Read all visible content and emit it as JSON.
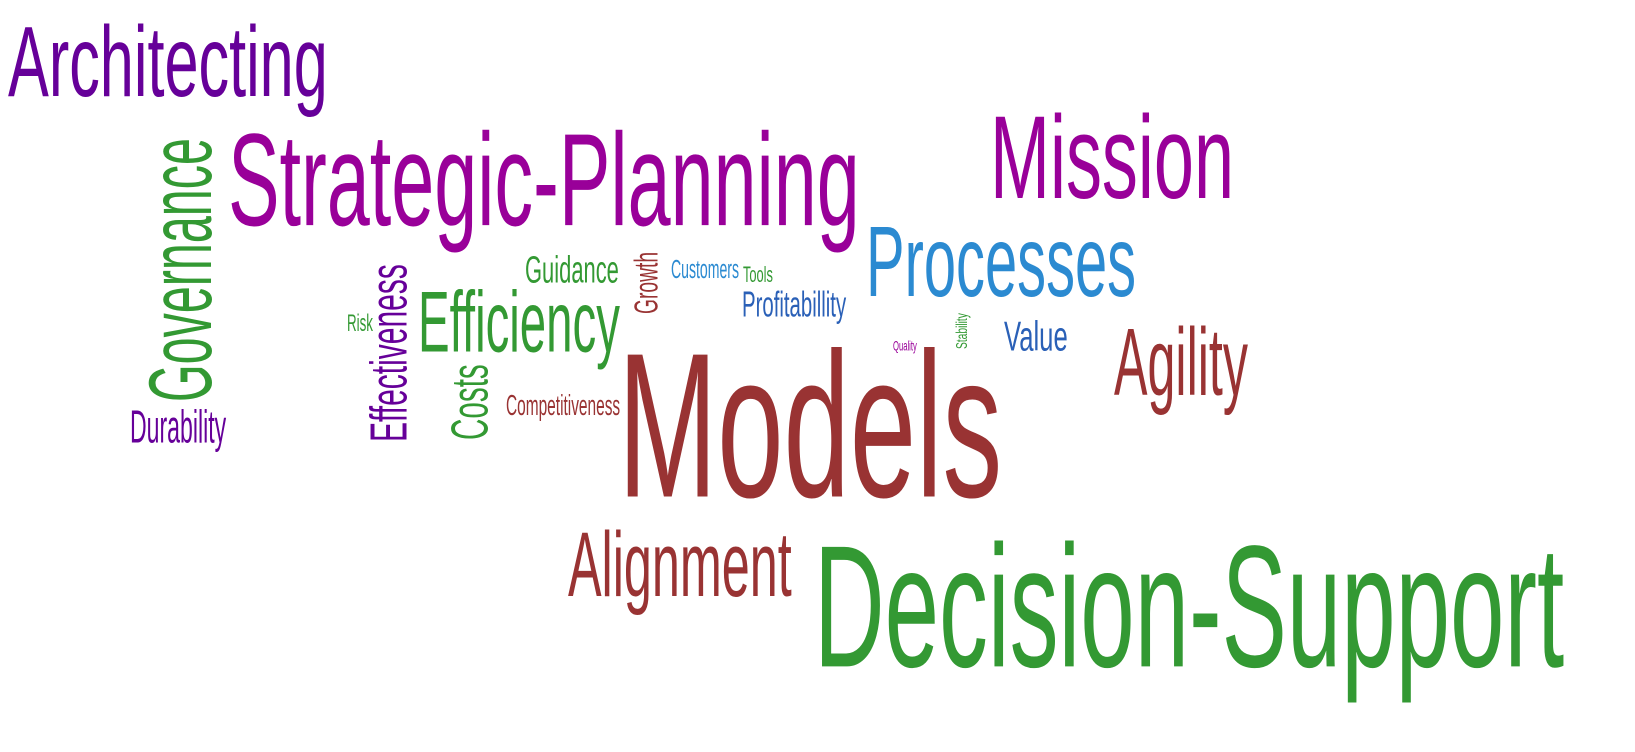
{
  "colors": {
    "purple": "#660099",
    "magenta": "#990099",
    "green": "#339933",
    "maroon": "#993333",
    "blue": "#2b8ad1",
    "dark_blue": "#2a60b7"
  },
  "words": [
    {
      "id": "architecting",
      "text": "Architecting",
      "color": "purple",
      "orientation": "horizontal"
    },
    {
      "id": "strategic-planning",
      "text": "Strategic-Planning",
      "color": "magenta",
      "orientation": "horizontal"
    },
    {
      "id": "governance",
      "text": "Governance",
      "color": "green",
      "orientation": "vertical"
    },
    {
      "id": "mission",
      "text": "Mission",
      "color": "magenta",
      "orientation": "horizontal"
    },
    {
      "id": "processes",
      "text": "Processes",
      "color": "blue",
      "orientation": "horizontal"
    },
    {
      "id": "guidance",
      "text": "Guidance",
      "color": "green",
      "orientation": "horizontal"
    },
    {
      "id": "growth",
      "text": "Growth",
      "color": "maroon",
      "orientation": "vertical"
    },
    {
      "id": "customers",
      "text": "Customers",
      "color": "blue",
      "orientation": "horizontal"
    },
    {
      "id": "tools",
      "text": "Tools",
      "color": "green",
      "orientation": "horizontal"
    },
    {
      "id": "profitabillity",
      "text": "Profitabillity",
      "color": "dark_blue",
      "orientation": "horizontal"
    },
    {
      "id": "risk",
      "text": "Risk",
      "color": "green",
      "orientation": "horizontal"
    },
    {
      "id": "effectiveness",
      "text": "Effectiveness",
      "color": "purple",
      "orientation": "vertical"
    },
    {
      "id": "efficiency",
      "text": "Efficiency",
      "color": "green",
      "orientation": "horizontal"
    },
    {
      "id": "costs",
      "text": "Costs",
      "color": "green",
      "orientation": "vertical"
    },
    {
      "id": "competitiveness",
      "text": "Competitiveness",
      "color": "maroon",
      "orientation": "horizontal"
    },
    {
      "id": "durability",
      "text": "Durability",
      "color": "purple",
      "orientation": "horizontal"
    },
    {
      "id": "value",
      "text": "Value",
      "color": "dark_blue",
      "orientation": "horizontal"
    },
    {
      "id": "quality",
      "text": "Quality",
      "color": "magenta",
      "orientation": "horizontal"
    },
    {
      "id": "stability",
      "text": "Stability",
      "color": "green",
      "orientation": "vertical"
    },
    {
      "id": "agility",
      "text": "Agility",
      "color": "maroon",
      "orientation": "horizontal"
    },
    {
      "id": "models",
      "text": "Models",
      "color": "maroon",
      "orientation": "horizontal"
    },
    {
      "id": "alignment",
      "text": "Alignment",
      "color": "maroon",
      "orientation": "horizontal"
    },
    {
      "id": "decision-support",
      "text": "Decision-Support",
      "color": "green",
      "orientation": "horizontal"
    }
  ]
}
